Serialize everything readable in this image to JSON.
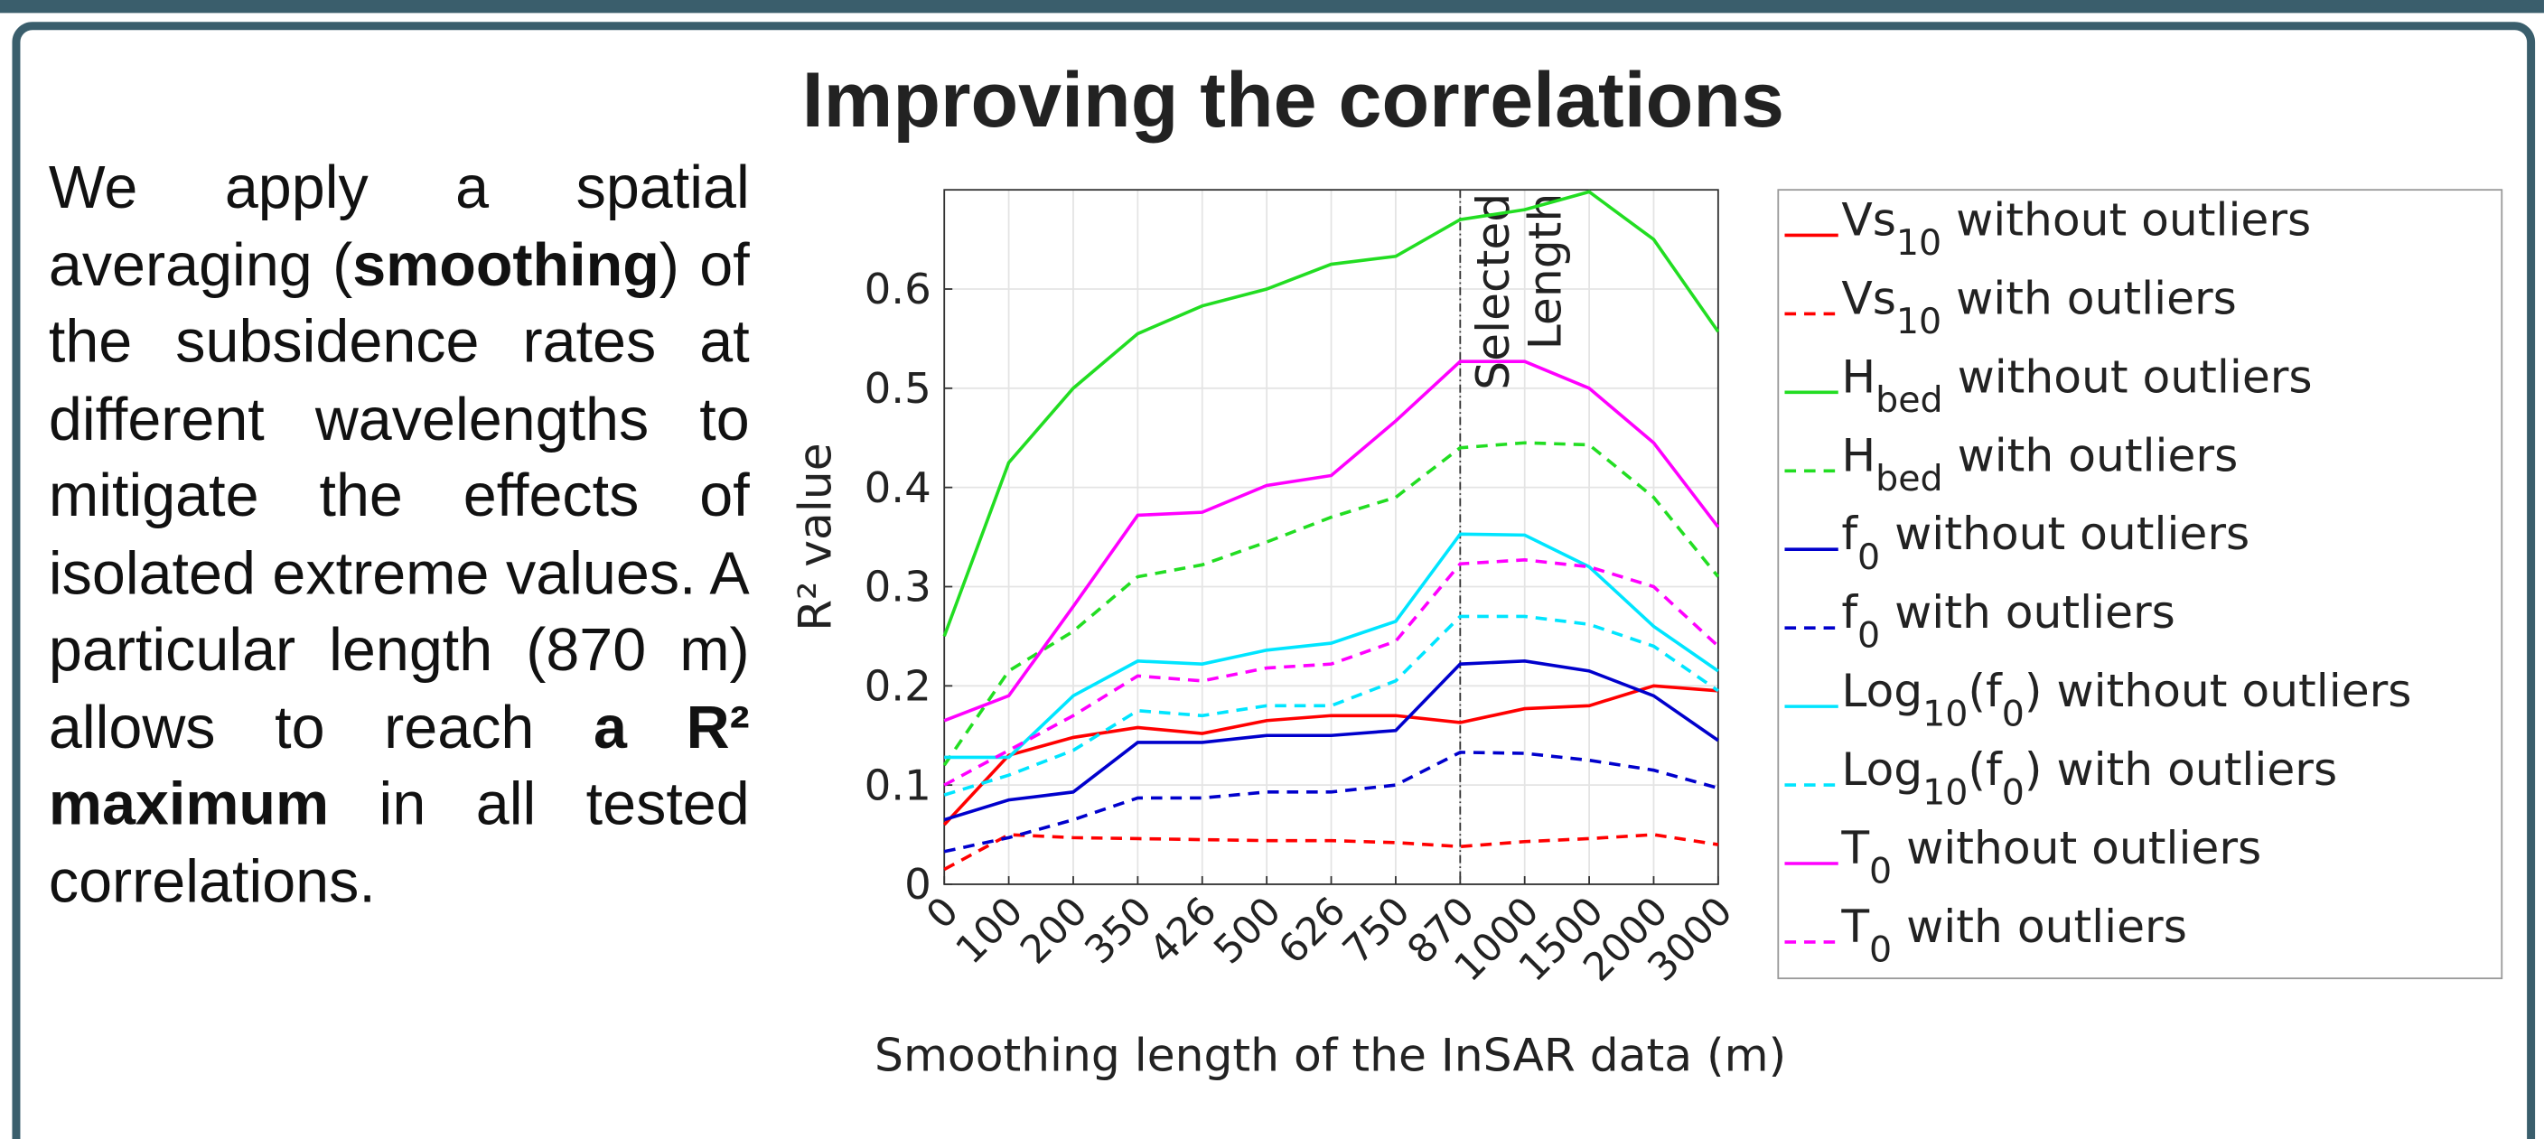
{
  "header": {
    "title": "Improving the correlations"
  },
  "paragraph": [
    {
      "text": "We apply a spatial averaging ("
    },
    {
      "text": "smoothing",
      "bold": true
    },
    {
      "text": ") of the subsidence rates at different wavelengths to mitigate the effects of isolated extreme values. A particular length (870 m) allows to reach "
    },
    {
      "text": "a R² maximum",
      "bold": true
    },
    {
      "text": " in all tested correlations."
    }
  ],
  "chart_data": {
    "type": "line",
    "xlabel": "Smoothing length of the InSAR data (m)",
    "ylabel": "R² value",
    "categories": [
      "0",
      "100",
      "200",
      "350",
      "426",
      "500",
      "626",
      "750",
      "870",
      "1000",
      "1500",
      "2000",
      "3000"
    ],
    "ylim": [
      0,
      0.7
    ],
    "yticks": [
      0,
      0.1,
      0.2,
      0.3,
      0.4,
      0.5,
      0.6
    ],
    "grid": true,
    "vline": {
      "category": "870",
      "labels": [
        "Selected",
        "Length"
      ]
    },
    "series": [
      {
        "name": [
          {
            "text": "Vs"
          },
          {
            "text": "10",
            "sub": true
          },
          {
            "text": " without outliers"
          }
        ],
        "color": "#ff0000",
        "style": "solid",
        "values": [
          0.06,
          0.13,
          0.148,
          0.158,
          0.152,
          0.165,
          0.17,
          0.17,
          0.163,
          0.177,
          0.18,
          0.2,
          0.195
        ]
      },
      {
        "name": [
          {
            "text": "Vs"
          },
          {
            "text": "10",
            "sub": true
          },
          {
            "text": " with outliers"
          }
        ],
        "color": "#ff0000",
        "style": "dashed",
        "values": [
          0.015,
          0.05,
          0.047,
          0.046,
          0.045,
          0.044,
          0.044,
          0.042,
          0.038,
          0.043,
          0.046,
          0.05,
          0.04
        ]
      },
      {
        "name": [
          {
            "text": "H"
          },
          {
            "text": "bed",
            "sub": true
          },
          {
            "text": " without outliers"
          }
        ],
        "color": "#22dd22",
        "style": "solid",
        "values": [
          0.25,
          0.425,
          0.5,
          0.555,
          0.583,
          0.6,
          0.625,
          0.633,
          0.67,
          0.68,
          0.698,
          0.65,
          0.557
        ]
      },
      {
        "name": [
          {
            "text": "H"
          },
          {
            "text": "bed",
            "sub": true
          },
          {
            "text": " with outliers"
          }
        ],
        "color": "#22dd22",
        "style": "dashed",
        "values": [
          0.12,
          0.215,
          0.255,
          0.31,
          0.322,
          0.345,
          0.37,
          0.39,
          0.44,
          0.445,
          0.443,
          0.39,
          0.31
        ]
      },
      {
        "name": [
          {
            "text": "f"
          },
          {
            "text": "0",
            "sub": true
          },
          {
            "text": " without outliers"
          }
        ],
        "color": "#0000cc",
        "style": "solid",
        "values": [
          0.065,
          0.085,
          0.093,
          0.143,
          0.143,
          0.15,
          0.15,
          0.155,
          0.222,
          0.225,
          0.215,
          0.19,
          0.145
        ]
      },
      {
        "name": [
          {
            "text": "f"
          },
          {
            "text": "0",
            "sub": true
          },
          {
            "text": " with outliers"
          }
        ],
        "color": "#0000cc",
        "style": "dashed",
        "values": [
          0.033,
          0.047,
          0.065,
          0.087,
          0.087,
          0.093,
          0.093,
          0.1,
          0.133,
          0.132,
          0.125,
          0.115,
          0.097
        ]
      },
      {
        "name": [
          {
            "text": "Log"
          },
          {
            "text": "10",
            "sub": true
          },
          {
            "text": "(f"
          },
          {
            "text": "0",
            "sub": true
          },
          {
            "text": ") without outliers"
          }
        ],
        "color": "#00e5ff",
        "style": "solid",
        "values": [
          0.128,
          0.128,
          0.19,
          0.225,
          0.222,
          0.236,
          0.243,
          0.265,
          0.353,
          0.352,
          0.32,
          0.26,
          0.215
        ]
      },
      {
        "name": [
          {
            "text": "Log"
          },
          {
            "text": "10",
            "sub": true
          },
          {
            "text": "(f"
          },
          {
            "text": "0",
            "sub": true
          },
          {
            "text": ") with outliers"
          }
        ],
        "color": "#00e5ff",
        "style": "dashed",
        "values": [
          0.09,
          0.11,
          0.135,
          0.175,
          0.17,
          0.18,
          0.18,
          0.205,
          0.27,
          0.27,
          0.262,
          0.24,
          0.195
        ]
      },
      {
        "name": [
          {
            "text": "T"
          },
          {
            "text": "0",
            "sub": true
          },
          {
            "text": " without outliers"
          }
        ],
        "color": "#ff00ff",
        "style": "solid",
        "values": [
          0.165,
          0.19,
          0.28,
          0.372,
          0.375,
          0.402,
          0.412,
          0.467,
          0.527,
          0.527,
          0.5,
          0.445,
          0.36
        ]
      },
      {
        "name": [
          {
            "text": "T"
          },
          {
            "text": "0",
            "sub": true
          },
          {
            "text": " with outliers"
          }
        ],
        "color": "#ff00ff",
        "style": "dashed",
        "values": [
          0.1,
          0.135,
          0.17,
          0.21,
          0.205,
          0.218,
          0.222,
          0.245,
          0.323,
          0.327,
          0.32,
          0.3,
          0.24
        ]
      }
    ]
  }
}
